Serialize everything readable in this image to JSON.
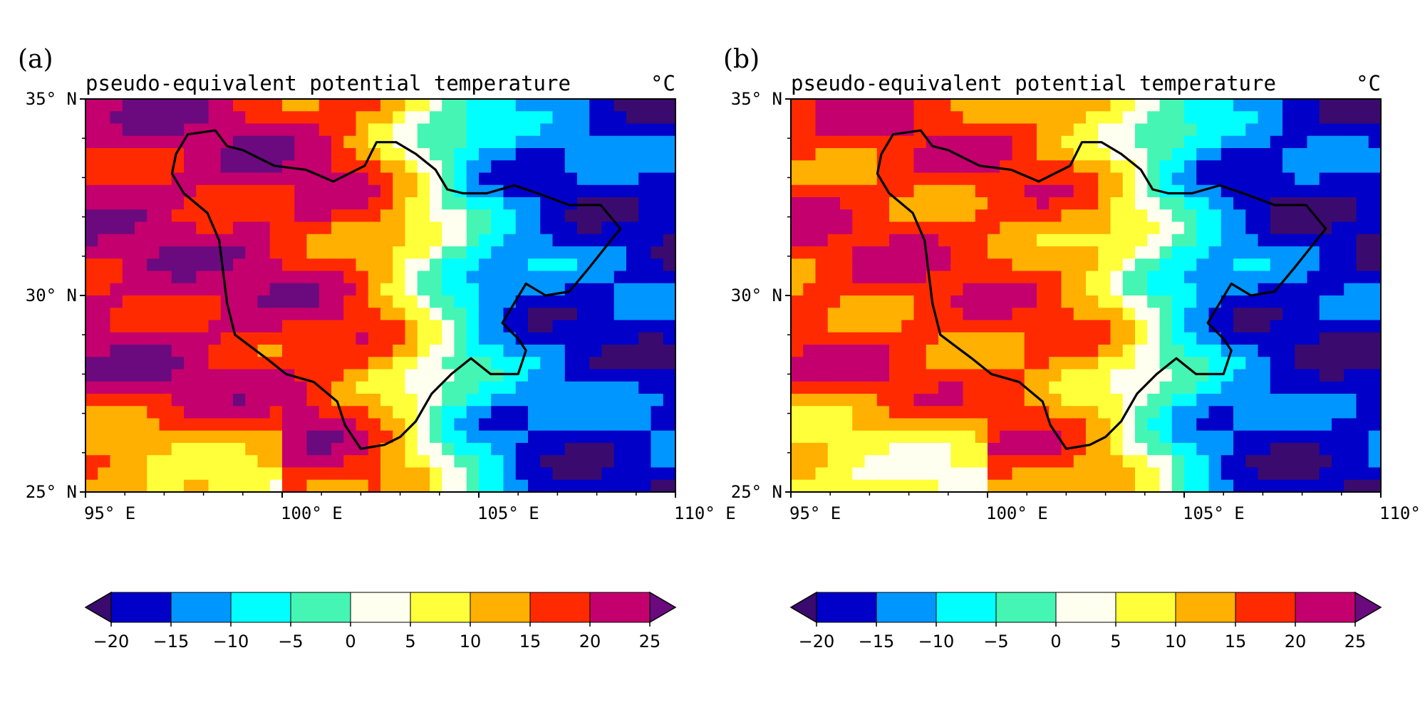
{
  "chart_data": [
    {
      "type": "heatmap",
      "panel_label": "(a)",
      "title": "pseudo-equivalent potential temperature",
      "units": "°C",
      "x_ticks": [
        "95° E",
        "100° E",
        "105° E",
        "110° E"
      ],
      "y_ticks": [
        "35° N",
        "30° N",
        "25° N"
      ],
      "x_range": [
        95,
        110
      ],
      "y_range": [
        25,
        35
      ],
      "colorbar_ticks": [
        "−20",
        "−15",
        "−10",
        "−5",
        "0",
        "5",
        "10",
        "15",
        "20",
        "25"
      ],
      "levels": [
        -20,
        -15,
        -10,
        -5,
        0,
        5,
        10,
        15,
        20,
        25
      ],
      "west_value": 22,
      "east_value": -17,
      "gradient_lon": 103.8
    },
    {
      "type": "heatmap",
      "panel_label": "(b)",
      "title": "pseudo-equivalent potential temperature",
      "units": "°C",
      "x_ticks": [
        "95° E",
        "100° E",
        "105° E",
        "110° E"
      ],
      "y_ticks": [
        "35° N",
        "30° N",
        "25° N"
      ],
      "x_range": [
        95,
        110
      ],
      "y_range": [
        25,
        35
      ],
      "colorbar_ticks": [
        "−20",
        "−15",
        "−10",
        "−5",
        "0",
        "5",
        "10",
        "15",
        "20",
        "25"
      ],
      "levels": [
        -20,
        -15,
        -10,
        -5,
        0,
        5,
        10,
        15,
        20,
        25
      ],
      "west_value": 18,
      "east_value": -18,
      "gradient_lon": 104.2
    }
  ],
  "colors": {
    "below": "#3b0a6e",
    "bins": [
      "#0000c8",
      "#0096ff",
      "#00ffff",
      "#45f5b4",
      "#fffff0",
      "#ffff3a",
      "#ffb000",
      "#ff2a00",
      "#c3006e"
    ],
    "above": "#6b0a7e",
    "boundary": "#000000"
  }
}
